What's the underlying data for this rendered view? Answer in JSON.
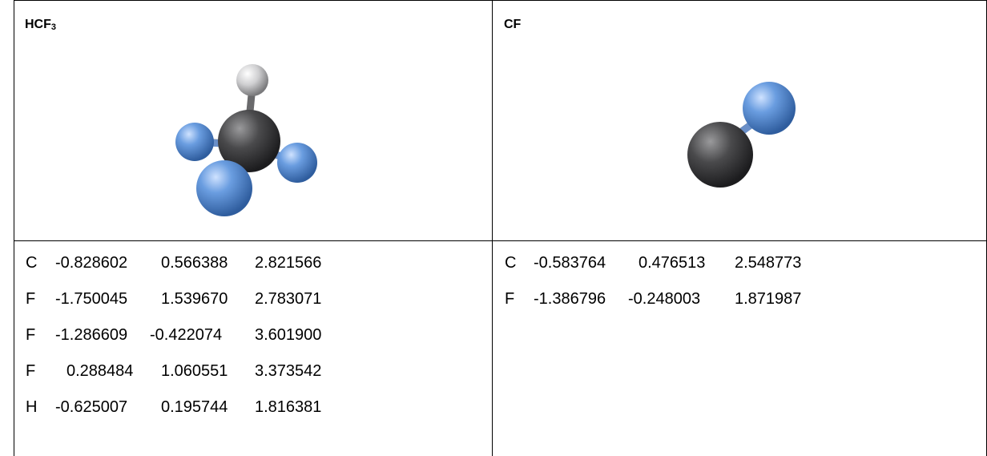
{
  "molecules": [
    {
      "title_main": "HCF",
      "title_sub": "3",
      "atoms": [
        {
          "el": "C",
          "x": "-0.828602",
          "y": "0.566388",
          "z": "2.821566"
        },
        {
          "el": "F",
          "x": "-1.750045",
          "y": "1.539670",
          "z": "2.783071"
        },
        {
          "el": "F",
          "x": "-1.286609",
          "y": "-0.422074",
          "z": "3.601900"
        },
        {
          "el": "F",
          "x": "0.288484",
          "y": "1.060551",
          "z": "3.373542"
        },
        {
          "el": "H",
          "x": "-0.625007",
          "y": "0.195744",
          "z": "1.816381"
        }
      ]
    },
    {
      "title_main": "CF",
      "title_sub": "",
      "atoms": [
        {
          "el": "C",
          "x": "-0.583764",
          "y": "0.476513",
          "z": "2.548773"
        },
        {
          "el": "F",
          "x": "-1.386796",
          "y": "-0.248003",
          "z": "1.871987"
        }
      ]
    }
  ],
  "colors": {
    "carbon": "#4a4a4c",
    "fluorine": "#5b8ed6",
    "hydrogen": "#d9d9d9"
  }
}
